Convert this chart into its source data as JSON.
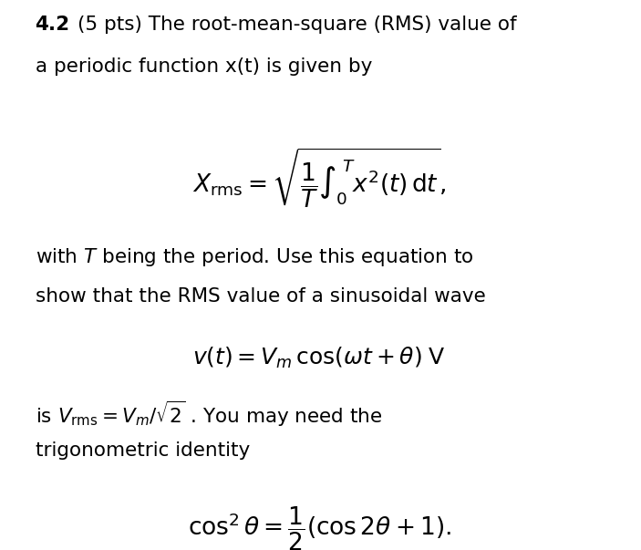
{
  "background_color": "#ffffff",
  "figsize": [
    7.03,
    6.03
  ],
  "dpi": 100,
  "text_color": "#000000",
  "font_size_body": 15.5,
  "font_size_formula": 17,
  "font_size_formula_large": 19,
  "formula1": "$X_{\\rm rms} = \\sqrt{\\dfrac{1}{T}\\int_0^{\\,T} x^2(t)\\, {\\rm d}t},$",
  "formula2": "$v(t) = V_m\\, \\cos(\\omega t + \\theta)\\;\\mathrm{V}$",
  "formula3": "$\\cos^2 \\theta = \\dfrac{1}{2}(\\cos 2\\theta + 1).$",
  "line1_bold": "4.2",
  "line1_rest": "(5 pts) The root-mean-square (RMS) value of",
  "line2": "a periodic function x(t) is given by",
  "line3": "with $T$ being the period. Use this equation to",
  "line4": "show that the RMS value of a sinusoidal wave",
  "line5": "is $V_{\\rm rms} = V_m/\\sqrt{2}$ . You may need the",
  "line6": "trigonometric identity"
}
